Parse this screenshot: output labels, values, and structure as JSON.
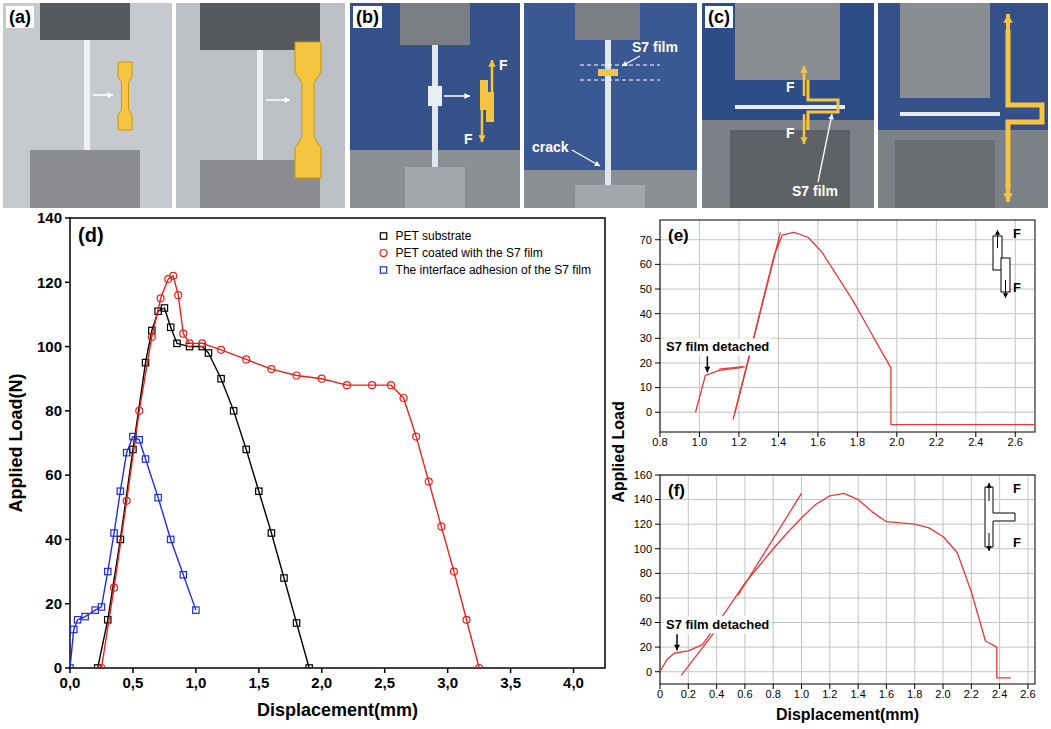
{
  "photo_panels": [
    {
      "label": "(a)"
    },
    {
      "label": "(b)",
      "annotations": [
        "F",
        "F",
        "S7 film",
        "crack"
      ]
    },
    {
      "label": "(c)",
      "annotations": [
        "F",
        "F",
        "S7 film"
      ]
    }
  ],
  "chart_data": [
    {
      "type": "line",
      "panel_label": "(d)",
      "x_label": "Displacement(mm)",
      "y_label": "Applied Load(N)",
      "xlim": [
        0,
        4.25
      ],
      "ylim": [
        0,
        140
      ],
      "xticks": [
        {
          "value": 0,
          "label": "0,0"
        },
        {
          "value": 0.5,
          "label": "0,5"
        },
        {
          "value": 1,
          "label": "1,0"
        },
        {
          "value": 1.5,
          "label": "1,5"
        },
        {
          "value": 2,
          "label": "2,0"
        },
        {
          "value": 2.5,
          "label": "2,5"
        },
        {
          "value": 3,
          "label": "3,0"
        },
        {
          "value": 3.5,
          "label": "3,5"
        },
        {
          "value": 4,
          "label": "4,0"
        }
      ],
      "yticks": [
        0,
        20,
        40,
        60,
        80,
        100,
        120,
        140
      ],
      "legend": "top-right",
      "series": [
        {
          "name": "PET substrate",
          "color": "#000000",
          "marker": "square",
          "x": [
            0.22,
            0.3,
            0.4,
            0.5,
            0.6,
            0.65,
            0.7,
            0.75,
            0.8,
            0.85,
            0.95,
            1.05,
            1.1,
            1.2,
            1.3,
            1.4,
            1.5,
            1.6,
            1.7,
            1.8,
            1.9
          ],
          "values": [
            0,
            15,
            40,
            68,
            95,
            105,
            111,
            112,
            106,
            101,
            100,
            100,
            98,
            90,
            80,
            68,
            55,
            42,
            28,
            14,
            0
          ]
        },
        {
          "name": "PET coated with the S7 film",
          "color": "#e8221c",
          "marker": "circle",
          "x": [
            0.25,
            0.35,
            0.45,
            0.55,
            0.65,
            0.72,
            0.78,
            0.82,
            0.86,
            0.9,
            0.95,
            1.05,
            1.2,
            1.4,
            1.6,
            1.8,
            2.0,
            2.2,
            2.4,
            2.55,
            2.65,
            2.75,
            2.85,
            2.95,
            3.05,
            3.15,
            3.25
          ],
          "values": [
            0,
            25,
            52,
            80,
            103,
            115,
            121,
            122,
            116,
            104,
            101,
            101,
            99,
            96,
            93,
            91,
            90,
            88,
            88,
            88,
            84,
            72,
            58,
            44,
            30,
            15,
            0
          ]
        },
        {
          "name": "The interface adhesion of the S7 film",
          "color": "#1f2fd6",
          "marker": "square",
          "x": [
            0,
            0.03,
            0.06,
            0.12,
            0.2,
            0.25,
            0.3,
            0.35,
            0.4,
            0.45,
            0.5,
            0.55,
            0.6,
            0.7,
            0.8,
            0.9,
            1.0
          ],
          "values": [
            0,
            12,
            15,
            16,
            18,
            19,
            30,
            42,
            55,
            67,
            72,
            71,
            65,
            53,
            40,
            29,
            18
          ]
        }
      ]
    },
    {
      "type": "line",
      "panel_label": "(e)",
      "y_label": "Applied Load",
      "xlim": [
        0.8,
        2.7
      ],
      "ylim": [
        -8,
        78
      ],
      "xticks": [
        0.8,
        {
          "value": 1,
          "label": "1.0"
        },
        1.2,
        1.4,
        1.6,
        1.8,
        {
          "value": 2,
          "label": "2.0"
        },
        2.2,
        2.4,
        2.6
      ],
      "yticks": [
        0,
        10,
        20,
        30,
        40,
        50,
        60,
        70
      ],
      "grid": true,
      "annotations": [
        {
          "text": "S7 film detached",
          "x": 1.04,
          "y": 15
        }
      ],
      "inset_labels": [
        "F",
        "F"
      ],
      "series": [
        {
          "color": "#e53935",
          "x": [
            0.98,
            1.03,
            1.1,
            1.2,
            1.23,
            1.23,
            1.17,
            1.25,
            1.32,
            1.38,
            1.42,
            1.48,
            1.55,
            1.62,
            1.7,
            1.78,
            1.85,
            1.92,
            1.97,
            1.97,
            2.7
          ],
          "values": [
            0,
            15,
            17,
            18,
            18.5,
            null,
            -3,
            22,
            45,
            64,
            72,
            73,
            71,
            65,
            55,
            45,
            35,
            25,
            18,
            -5,
            -5
          ]
        },
        {
          "color": "#e53935",
          "x": [
            1.18,
            1.41,
            1.3,
            1.1,
            1.22
          ],
          "values": [
            0,
            73,
            null,
            17.5,
            18.5
          ]
        }
      ]
    },
    {
      "type": "line",
      "panel_label": "(f)",
      "x_label": "Displacement(mm)",
      "xlim": [
        0,
        2.65
      ],
      "ylim": [
        -10,
        160
      ],
      "xticks": [
        0,
        0.2,
        0.4,
        0.6,
        0.8,
        {
          "value": 1,
          "label": "1.0"
        },
        1.2,
        1.4,
        1.6,
        1.8,
        {
          "value": 2,
          "label": "2.0"
        },
        2.2,
        2.4,
        2.6
      ],
      "yticks": [
        0,
        20,
        40,
        60,
        80,
        100,
        120,
        140,
        160
      ],
      "grid": true,
      "annotations": [
        {
          "text": "S7 film detached",
          "x": 0.12,
          "y": 15
        }
      ],
      "inset_labels": [
        "F",
        "F"
      ],
      "series": [
        {
          "color": "#e53935",
          "x": [
            0,
            0.05,
            0.1,
            0.2,
            0.3,
            0.4,
            0.5,
            0.6,
            0.7,
            0.8,
            0.9,
            1.0,
            1.1,
            1.2,
            1.3,
            1.4,
            1.5,
            1.6,
            1.7,
            1.8,
            1.9,
            2.0,
            2.1,
            2.2,
            2.3,
            2.38,
            2.38,
            2.48
          ],
          "values": [
            0,
            10,
            15,
            17,
            22,
            38,
            55,
            72,
            86,
            100,
            113,
            125,
            136,
            143,
            145,
            140,
            130,
            122,
            121,
            120,
            117,
            110,
            97,
            65,
            25,
            20,
            -5,
            -5
          ]
        },
        {
          "color": "#e53935",
          "x": [
            0.15,
            0.45,
            0.5,
            0.55,
            1.0
          ],
          "values": [
            -3,
            42,
            null,
            62,
            145
          ]
        }
      ]
    }
  ]
}
